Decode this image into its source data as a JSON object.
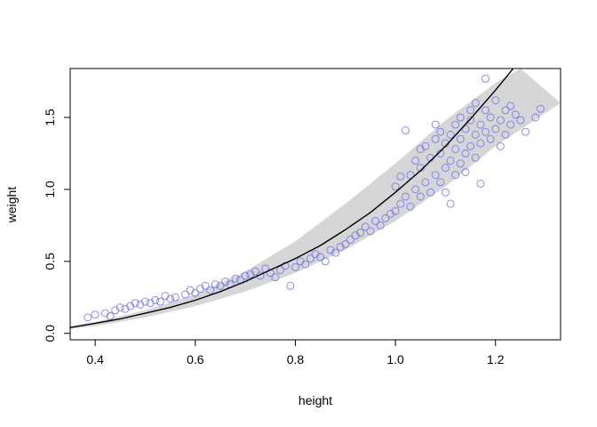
{
  "chart_data": {
    "type": "scatter",
    "title": "",
    "xlabel": "height",
    "ylabel": "weight",
    "xlim": [
      0.35,
      1.33
    ],
    "ylim": [
      -0.045,
      1.84
    ],
    "x_ticks": [
      0.4,
      0.6,
      0.8,
      1.0,
      1.2
    ],
    "x_tick_labels": [
      "0.4",
      "0.6",
      "0.8",
      "1.0",
      "1.2"
    ],
    "y_ticks": [
      0.0,
      0.5,
      1.0,
      1.5
    ],
    "y_tick_labels": [
      "0.0",
      "0.5",
      "1.0",
      "1.5"
    ],
    "grid": false,
    "legend": "none",
    "point_color": "#6b6bf0",
    "band_color": "#d6d6d6",
    "points": [
      [
        0.385,
        0.11
      ],
      [
        0.4,
        0.13
      ],
      [
        0.42,
        0.14
      ],
      [
        0.43,
        0.12
      ],
      [
        0.44,
        0.16
      ],
      [
        0.45,
        0.18
      ],
      [
        0.46,
        0.17
      ],
      [
        0.47,
        0.19
      ],
      [
        0.48,
        0.21
      ],
      [
        0.49,
        0.2
      ],
      [
        0.5,
        0.22
      ],
      [
        0.51,
        0.21
      ],
      [
        0.52,
        0.23
      ],
      [
        0.53,
        0.22
      ],
      [
        0.54,
        0.26
      ],
      [
        0.55,
        0.24
      ],
      [
        0.56,
        0.25
      ],
      [
        0.58,
        0.27
      ],
      [
        0.59,
        0.3
      ],
      [
        0.6,
        0.28
      ],
      [
        0.61,
        0.31
      ],
      [
        0.62,
        0.33
      ],
      [
        0.63,
        0.3
      ],
      [
        0.64,
        0.34
      ],
      [
        0.65,
        0.33
      ],
      [
        0.66,
        0.36
      ],
      [
        0.67,
        0.34
      ],
      [
        0.68,
        0.38
      ],
      [
        0.69,
        0.37
      ],
      [
        0.7,
        0.4
      ],
      [
        0.71,
        0.41
      ],
      [
        0.72,
        0.43
      ],
      [
        0.73,
        0.4
      ],
      [
        0.74,
        0.45
      ],
      [
        0.75,
        0.42
      ],
      [
        0.76,
        0.39
      ],
      [
        0.77,
        0.44
      ],
      [
        0.78,
        0.47
      ],
      [
        0.79,
        0.33
      ],
      [
        0.8,
        0.46
      ],
      [
        0.81,
        0.5
      ],
      [
        0.82,
        0.48
      ],
      [
        0.83,
        0.52
      ],
      [
        0.84,
        0.55
      ],
      [
        0.85,
        0.53
      ],
      [
        0.86,
        0.5
      ],
      [
        0.87,
        0.58
      ],
      [
        0.88,
        0.56
      ],
      [
        0.89,
        0.6
      ],
      [
        0.9,
        0.62
      ],
      [
        0.91,
        0.65
      ],
      [
        0.92,
        0.68
      ],
      [
        0.93,
        0.7
      ],
      [
        0.94,
        0.74
      ],
      [
        0.95,
        0.71
      ],
      [
        0.96,
        0.78
      ],
      [
        0.97,
        0.75
      ],
      [
        0.98,
        0.8
      ],
      [
        0.99,
        0.83
      ],
      [
        1.0,
        0.85
      ],
      [
        1.0,
        1.02
      ],
      [
        1.01,
        0.9
      ],
      [
        1.01,
        1.09
      ],
      [
        1.02,
        0.95
      ],
      [
        1.02,
        1.41
      ],
      [
        1.03,
        0.88
      ],
      [
        1.03,
        1.1
      ],
      [
        1.04,
        1.0
      ],
      [
        1.04,
        1.2
      ],
      [
        1.05,
        0.95
      ],
      [
        1.05,
        1.15
      ],
      [
        1.05,
        1.28
      ],
      [
        1.06,
        1.05
      ],
      [
        1.06,
        1.3
      ],
      [
        1.07,
        0.98
      ],
      [
        1.07,
        1.22
      ],
      [
        1.08,
        1.1
      ],
      [
        1.08,
        1.35
      ],
      [
        1.08,
        1.45
      ],
      [
        1.09,
        1.05
      ],
      [
        1.09,
        1.25
      ],
      [
        1.09,
        1.4
      ],
      [
        1.1,
        1.15
      ],
      [
        1.1,
        1.32
      ],
      [
        1.1,
        0.98
      ],
      [
        1.11,
        1.2
      ],
      [
        1.11,
        1.38
      ],
      [
        1.11,
        0.9
      ],
      [
        1.12,
        1.28
      ],
      [
        1.12,
        1.45
      ],
      [
        1.12,
        1.1
      ],
      [
        1.13,
        1.18
      ],
      [
        1.13,
        1.35
      ],
      [
        1.13,
        1.5
      ],
      [
        1.14,
        1.25
      ],
      [
        1.14,
        1.42
      ],
      [
        1.14,
        1.12
      ],
      [
        1.15,
        1.3
      ],
      [
        1.15,
        1.48
      ],
      [
        1.15,
        1.55
      ],
      [
        1.16,
        1.22
      ],
      [
        1.16,
        1.38
      ],
      [
        1.16,
        1.6
      ],
      [
        1.17,
        1.32
      ],
      [
        1.17,
        1.45
      ],
      [
        1.17,
        1.04
      ],
      [
        1.18,
        1.4
      ],
      [
        1.18,
        1.55
      ],
      [
        1.18,
        1.77
      ],
      [
        1.19,
        1.35
      ],
      [
        1.19,
        1.5
      ],
      [
        1.2,
        1.42
      ],
      [
        1.2,
        1.62
      ],
      [
        1.21,
        1.48
      ],
      [
        1.21,
        1.3
      ],
      [
        1.22,
        1.55
      ],
      [
        1.22,
        1.38
      ],
      [
        1.23,
        1.45
      ],
      [
        1.23,
        1.58
      ],
      [
        1.24,
        1.52
      ],
      [
        1.25,
        1.48
      ],
      [
        1.26,
        1.4
      ],
      [
        1.28,
        1.5
      ],
      [
        1.29,
        1.56
      ]
    ],
    "mean_curve": [
      [
        0.35,
        0.04
      ],
      [
        0.4,
        0.07
      ],
      [
        0.45,
        0.1
      ],
      [
        0.5,
        0.14
      ],
      [
        0.55,
        0.18
      ],
      [
        0.6,
        0.23
      ],
      [
        0.65,
        0.29
      ],
      [
        0.7,
        0.36
      ],
      [
        0.75,
        0.44
      ],
      [
        0.8,
        0.52
      ],
      [
        0.85,
        0.61
      ],
      [
        0.9,
        0.72
      ],
      [
        0.95,
        0.84
      ],
      [
        1.0,
        0.98
      ],
      [
        1.05,
        1.13
      ],
      [
        1.1,
        1.3
      ],
      [
        1.15,
        1.49
      ],
      [
        1.2,
        1.69
      ],
      [
        1.24,
        1.86
      ]
    ],
    "band_upper": [
      [
        0.35,
        0.05
      ],
      [
        0.4,
        0.08
      ],
      [
        0.5,
        0.16
      ],
      [
        0.6,
        0.27
      ],
      [
        0.7,
        0.43
      ],
      [
        0.8,
        0.64
      ],
      [
        0.9,
        0.9
      ],
      [
        1.0,
        1.18
      ],
      [
        1.1,
        1.48
      ],
      [
        1.2,
        1.74
      ],
      [
        1.25,
        1.84
      ]
    ],
    "band_lower": [
      [
        0.35,
        0.03
      ],
      [
        0.4,
        0.05
      ],
      [
        0.5,
        0.11
      ],
      [
        0.6,
        0.19
      ],
      [
        0.7,
        0.29
      ],
      [
        0.8,
        0.42
      ],
      [
        0.9,
        0.58
      ],
      [
        1.0,
        0.78
      ],
      [
        1.1,
        1.02
      ],
      [
        1.2,
        1.3
      ],
      [
        1.33,
        1.6
      ]
    ]
  }
}
